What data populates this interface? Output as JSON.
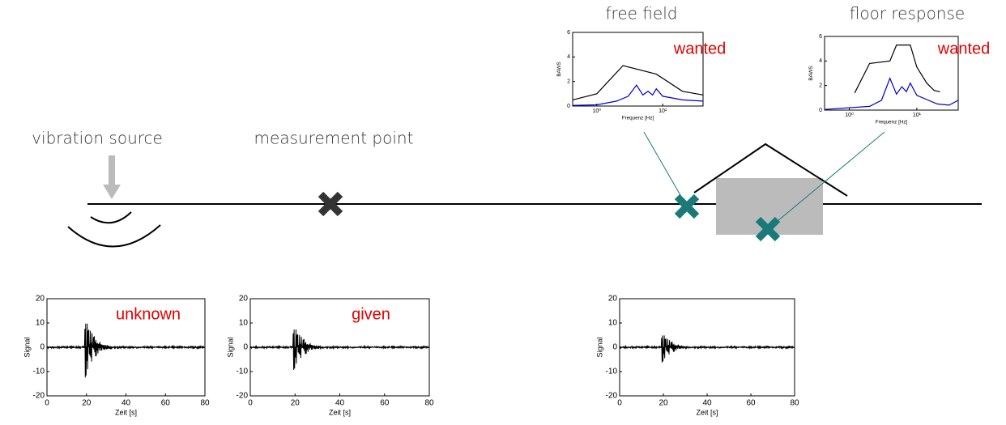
{
  "labels": {
    "vibration_source": "vibration source",
    "measurement_point": "measurement point",
    "free_field": "free field",
    "floor_response": "floor response"
  },
  "spectra": [
    {
      "type": "line",
      "x_label": "Frequenz [Hz]",
      "y_label": "BAWS",
      "annotation": "wanted",
      "log_x": true,
      "xlim": [
        0.43,
        41
      ],
      "ylim": [
        0,
        6
      ],
      "xticks": [
        {
          "value": 1,
          "label": "10⁰"
        },
        {
          "value": 10,
          "label": "10¹"
        }
      ],
      "yticks": [
        0,
        2,
        4,
        6
      ],
      "series": [
        {
          "color": "#000000",
          "x": [
            0.43,
            1,
            2.5,
            8,
            20,
            41
          ],
          "values": [
            0.5,
            1,
            3.3,
            2.6,
            1.2,
            0.9
          ]
        },
        {
          "color": "#0000cc",
          "x": [
            0.43,
            1,
            2,
            3,
            4,
            5,
            6,
            7,
            8,
            10,
            20,
            41
          ],
          "values": [
            0.05,
            0.1,
            0.4,
            0.8,
            1.7,
            0.9,
            1.2,
            0.9,
            1.4,
            0.8,
            0.5,
            0.4
          ]
        }
      ]
    },
    {
      "type": "line",
      "x_label": "Frequenz [Hz]",
      "y_label": "BAWS",
      "annotation": "wanted",
      "log_x": true,
      "xlim": [
        0.43,
        41
      ],
      "ylim": [
        0,
        6
      ],
      "xticks": [
        {
          "value": 1,
          "label": "10⁰"
        },
        {
          "value": 10,
          "label": "10¹"
        }
      ],
      "yticks": [
        0,
        2,
        4,
        6
      ],
      "series": [
        {
          "color": "#000000",
          "x": [
            1.2,
            2,
            4,
            5,
            8,
            10,
            14,
            18,
            22
          ],
          "values": [
            1.4,
            3.8,
            4,
            5.3,
            5.3,
            3.5,
            2.2,
            1.6,
            1.5
          ]
        },
        {
          "color": "#0000cc",
          "x": [
            0.43,
            2,
            3,
            4,
            5,
            6,
            7,
            8,
            10,
            20,
            30,
            41
          ],
          "values": [
            0.05,
            0.3,
            0.8,
            2.6,
            1.3,
            1.9,
            1.5,
            2.2,
            1.2,
            0.5,
            0.4,
            0.8
          ]
        }
      ]
    }
  ],
  "signals": [
    {
      "type": "line",
      "x_label": "Zeit [s]",
      "y_label": "Signal",
      "annotation": "unknown",
      "xlim": [
        0,
        80
      ],
      "ylim": [
        -20,
        20
      ],
      "xticks": [
        0,
        20,
        40,
        60,
        80
      ],
      "yticks": [
        -20,
        -10,
        0,
        10,
        20
      ]
    },
    {
      "type": "line",
      "x_label": "Zeit [s]",
      "y_label": "Signal",
      "annotation": "given",
      "xlim": [
        0,
        80
      ],
      "ylim": [
        -20,
        20
      ],
      "xticks": [
        0,
        20,
        40,
        60,
        80
      ],
      "yticks": [
        -20,
        -10,
        0,
        10,
        20
      ]
    },
    {
      "type": "line",
      "x_label": "Zeit [s]",
      "y_label": "Signal",
      "xlim": [
        0,
        80
      ],
      "ylim": [
        -20,
        20
      ],
      "xticks": [
        0,
        20,
        40,
        60,
        80
      ],
      "yticks": [
        -20,
        -10,
        0,
        10,
        20
      ]
    }
  ]
}
